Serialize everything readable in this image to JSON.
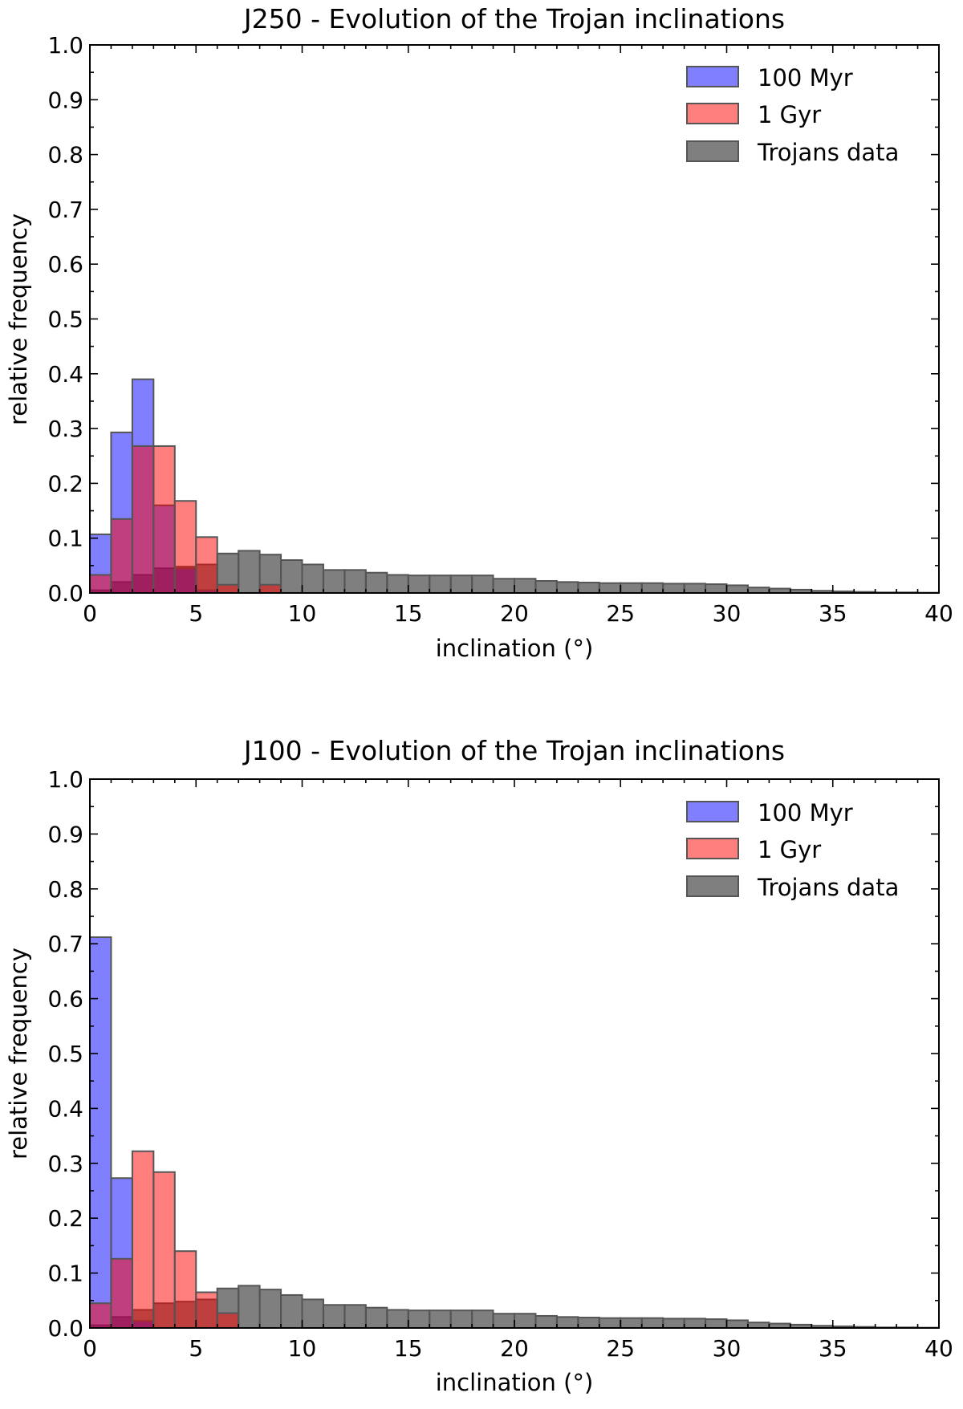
{
  "colors": {
    "blue": "#0000ff",
    "red": "#ff0000",
    "gray": "#000000",
    "edge": "#555555"
  },
  "chart_data": [
    {
      "type": "bar",
      "title": "J250 - Evolution of the Trojan inclinations",
      "xlabel": "inclination (°)",
      "ylabel": "relative frequency",
      "xlim": [
        0,
        40
      ],
      "ylim": [
        0,
        1.0
      ],
      "xticks": [
        "0",
        "5",
        "10",
        "15",
        "20",
        "25",
        "30",
        "35",
        "40"
      ],
      "yticks": [
        "0.0",
        "0.1",
        "0.2",
        "0.3",
        "0.4",
        "0.5",
        "0.6",
        "0.7",
        "0.8",
        "0.9",
        "1.0"
      ],
      "legend": [
        "100 Myr",
        "1 Gyr",
        "Trojans data"
      ],
      "legend_position": "top-right",
      "bin_width": 1,
      "series": [
        {
          "name": "100 Myr",
          "color": "blue",
          "values": [
            0.107,
            0.293,
            0.39,
            0.16,
            0.045,
            0.005
          ]
        },
        {
          "name": "1 Gyr",
          "color": "red",
          "values": [
            0.033,
            0.135,
            0.268,
            0.268,
            0.168,
            0.102,
            0.015,
            0,
            0.015
          ]
        },
        {
          "name": "Trojans data",
          "color": "gray",
          "values": [
            0.005,
            0.02,
            0.033,
            0.045,
            0.048,
            0.052,
            0.072,
            0.077,
            0.07,
            0.06,
            0.052,
            0.042,
            0.042,
            0.037,
            0.033,
            0.032,
            0.032,
            0.032,
            0.032,
            0.026,
            0.026,
            0.022,
            0.02,
            0.019,
            0.018,
            0.018,
            0.018,
            0.017,
            0.017,
            0.016,
            0.014,
            0.01,
            0.008,
            0.006,
            0.004,
            0.003,
            0.002,
            0.001,
            0.001,
            0.0005
          ]
        }
      ]
    },
    {
      "type": "bar",
      "title": "J100 - Evolution of the Trojan inclinations",
      "xlabel": "inclination (°)",
      "ylabel": "relative frequency",
      "xlim": [
        0,
        40
      ],
      "ylim": [
        0,
        1.0
      ],
      "xticks": [
        "0",
        "5",
        "10",
        "15",
        "20",
        "25",
        "30",
        "35",
        "40"
      ],
      "yticks": [
        "0.0",
        "0.1",
        "0.2",
        "0.3",
        "0.4",
        "0.5",
        "0.6",
        "0.7",
        "0.8",
        "0.9",
        "1.0"
      ],
      "legend": [
        "100 Myr",
        "1 Gyr",
        "Trojans data"
      ],
      "legend_position": "top-right",
      "bin_width": 1,
      "series": [
        {
          "name": "100 Myr",
          "color": "blue",
          "values": [
            0.712,
            0.273,
            0.013
          ]
        },
        {
          "name": "1 Gyr",
          "color": "red",
          "values": [
            0.045,
            0.126,
            0.322,
            0.284,
            0.14,
            0.065,
            0.027
          ]
        },
        {
          "name": "Trojans data",
          "color": "gray",
          "values": [
            0.005,
            0.02,
            0.033,
            0.045,
            0.048,
            0.052,
            0.072,
            0.077,
            0.07,
            0.06,
            0.052,
            0.042,
            0.042,
            0.037,
            0.033,
            0.032,
            0.032,
            0.032,
            0.032,
            0.026,
            0.026,
            0.022,
            0.02,
            0.019,
            0.018,
            0.018,
            0.018,
            0.017,
            0.017,
            0.016,
            0.014,
            0.01,
            0.008,
            0.006,
            0.004,
            0.003,
            0.002,
            0.001,
            0.001,
            0.0005
          ]
        }
      ]
    }
  ]
}
